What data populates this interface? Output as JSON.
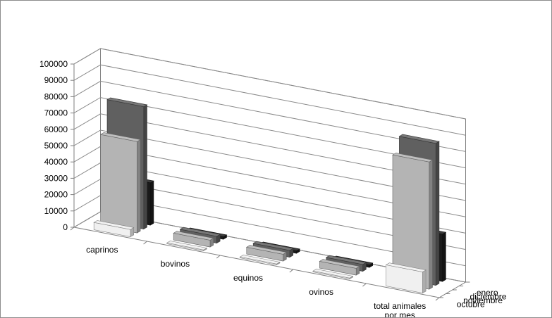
{
  "chart_data": {
    "type": "bar",
    "variant": "3d-column",
    "title": "",
    "xlabel": "",
    "ylabel": "",
    "ylim": [
      0,
      100000
    ],
    "yticks": [
      "0",
      "10000",
      "20000",
      "30000",
      "40000",
      "50000",
      "60000",
      "70000",
      "80000",
      "90000",
      "100000"
    ],
    "grid": true,
    "categories": [
      "caprinos",
      "bovinos",
      "equinos",
      "ovinos",
      "total animales por mes"
    ],
    "series": [
      {
        "name": "octubre",
        "color": "#f0f0f0",
        "values": [
          4500,
          600,
          600,
          600,
          13000
        ]
      },
      {
        "name": "noviembre",
        "color": "#b4b4b4",
        "values": [
          56000,
          4200,
          4200,
          4200,
          78000
        ]
      },
      {
        "name": "diciembre",
        "color": "#606060",
        "values": [
          75000,
          4200,
          4200,
          4200,
          87000
        ]
      },
      {
        "name": "enero",
        "color": "#1a1a1a",
        "values": [
          26000,
          1500,
          1500,
          1500,
          29000
        ]
      }
    ]
  }
}
